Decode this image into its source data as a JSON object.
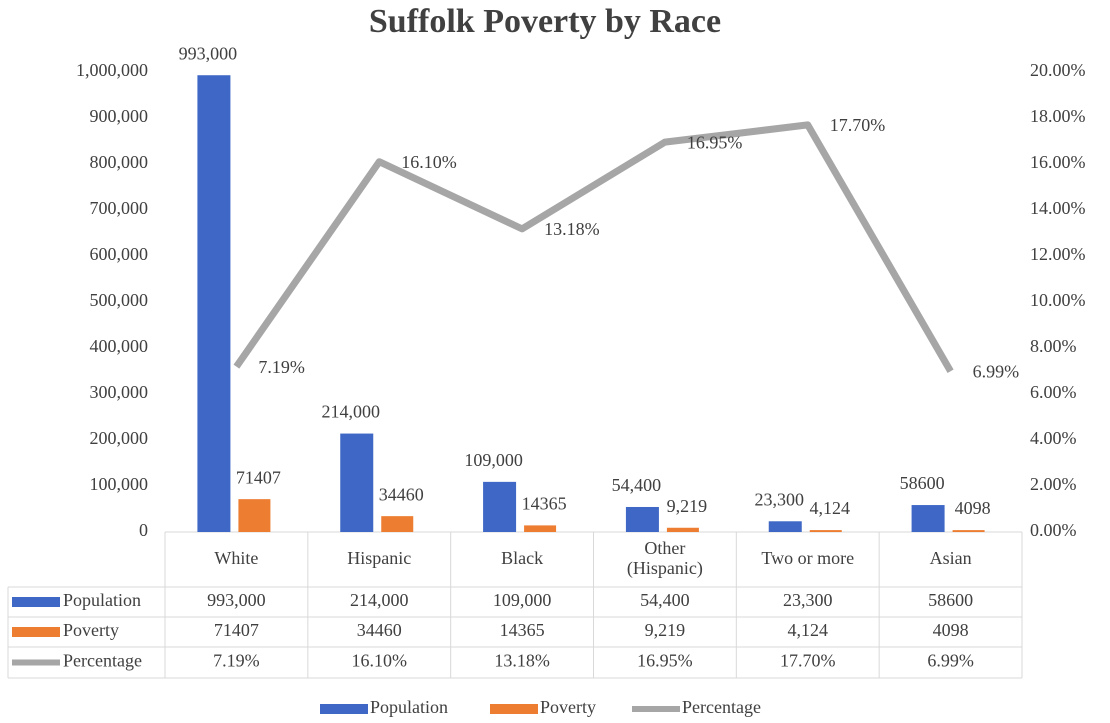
{
  "chart_data": {
    "type": "bar_line",
    "title": "Suffolk Poverty by Race",
    "categories": [
      "White",
      "Hispanic",
      "Black",
      "Other\n(Hispanic)",
      "Two or more",
      "Asian"
    ],
    "series": [
      {
        "name": "Population",
        "type": "bar",
        "color": "#3f68c6",
        "values": [
          993000,
          214000,
          109000,
          54400,
          23300,
          58600
        ],
        "value_labels": [
          "993,000",
          "214,000",
          "109,000",
          "54,400",
          "23,300",
          "58600"
        ]
      },
      {
        "name": "Poverty",
        "type": "bar",
        "color": "#ed7d31",
        "values": [
          71407,
          34460,
          14365,
          9219,
          4124,
          4098
        ],
        "value_labels": [
          "71407",
          "34460",
          "14365",
          "9,219",
          "4,124",
          "4098"
        ]
      },
      {
        "name": "Percentage",
        "type": "line",
        "axis": "y2",
        "color": "#a6a6a6",
        "values": [
          7.19,
          16.1,
          13.18,
          16.95,
          17.7,
          6.99
        ],
        "value_labels": [
          "7.19%",
          "16.10%",
          "13.18%",
          "16.95%",
          "17.70%",
          "6.99%"
        ]
      }
    ],
    "ylim": [
      0,
      1000000
    ],
    "yticks": [
      0,
      {
        "value": 100000,
        "label": "100,000"
      },
      {
        "value": 200000,
        "label": "200,000"
      },
      {
        "value": 300000,
        "label": "300,000"
      },
      {
        "value": 400000,
        "label": "400,000"
      },
      {
        "value": 500000,
        "label": "500,000"
      },
      {
        "value": 600000,
        "label": "600,000"
      },
      {
        "value": 700000,
        "label": "700,000"
      },
      {
        "value": 800000,
        "label": "800,000"
      },
      {
        "value": 900000,
        "label": "900,000"
      },
      {
        "value": 1000000,
        "label": "1,000,000"
      }
    ],
    "y2lim": [
      0,
      20
    ],
    "y2ticks": [
      {
        "value": 0,
        "label": "0.00%"
      },
      {
        "value": 2,
        "label": "2.00%"
      },
      {
        "value": 4,
        "label": "4.00%"
      },
      {
        "value": 6,
        "label": "6.00%"
      },
      {
        "value": 8,
        "label": "8.00%"
      },
      {
        "value": 10,
        "label": "10.00%"
      },
      {
        "value": 12,
        "label": "12.00%"
      },
      {
        "value": 14,
        "label": "14.00%"
      },
      {
        "value": 16,
        "label": "16.00%"
      },
      {
        "value": 18,
        "label": "18.00%"
      },
      {
        "value": 20,
        "label": "20.00%"
      }
    ],
    "grid": false,
    "data_table": true,
    "legend": "bottom"
  }
}
